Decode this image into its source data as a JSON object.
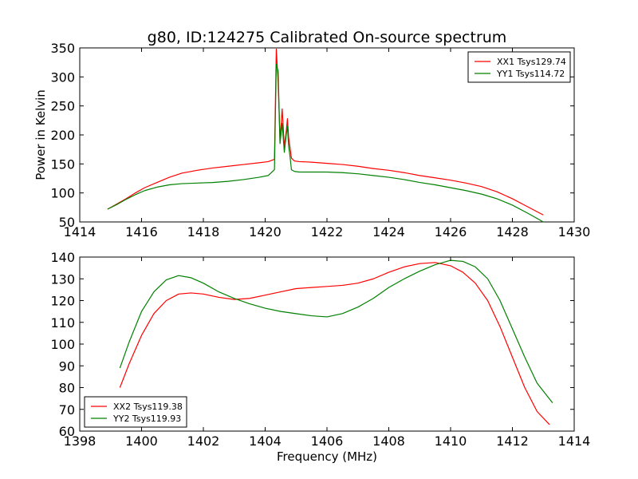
{
  "figure": {
    "title": "g80, ID:124275 Calibrated On-source spectrum",
    "xlabel": "Frequency (MHz)"
  },
  "chart_data": [
    {
      "type": "line",
      "ylabel": "Power in Kelvin",
      "xlim": [
        1414,
        1430
      ],
      "ylim": [
        50,
        350
      ],
      "xticks": [
        "1414",
        "1416",
        "1418",
        "1420",
        "1422",
        "1424",
        "1426",
        "1428",
        "1430"
      ],
      "yticks": [
        "50",
        "100",
        "150",
        "200",
        "250",
        "300",
        "350"
      ],
      "legend": "top-right",
      "series": [
        {
          "name": "XX1 Tsys129.74",
          "color": "#ff0000",
          "x": [
            1414.9,
            1415.2,
            1415.5,
            1415.8,
            1416.1,
            1416.5,
            1416.9,
            1417.3,
            1417.8,
            1418.3,
            1418.8,
            1419.3,
            1419.8,
            1420.1,
            1420.3,
            1420.36,
            1420.42,
            1420.48,
            1420.55,
            1420.62,
            1420.68,
            1420.72,
            1420.76,
            1420.8,
            1420.85,
            1420.95,
            1421.1,
            1421.5,
            1422.0,
            1422.5,
            1423.0,
            1423.5,
            1424.0,
            1424.5,
            1425.0,
            1425.5,
            1426.0,
            1426.5,
            1427.0,
            1427.5,
            1428.0,
            1428.5,
            1429.0
          ],
          "values": [
            72,
            81,
            90,
            100,
            109,
            118,
            127,
            134,
            139,
            143,
            146,
            149,
            152,
            154,
            158,
            348,
            290,
            190,
            245,
            180,
            205,
            228,
            195,
            180,
            160,
            155,
            154,
            153,
            151,
            149,
            146,
            142,
            139,
            135,
            130,
            126,
            122,
            117,
            111,
            102,
            90,
            76,
            62
          ]
        },
        {
          "name": "YY1 Tsys114.72",
          "color": "#008000",
          "x": [
            1414.9,
            1415.2,
            1415.5,
            1415.8,
            1416.1,
            1416.5,
            1416.9,
            1417.3,
            1417.8,
            1418.3,
            1418.8,
            1419.3,
            1419.8,
            1420.1,
            1420.3,
            1420.36,
            1420.42,
            1420.48,
            1420.55,
            1420.62,
            1420.68,
            1420.72,
            1420.76,
            1420.8,
            1420.85,
            1420.95,
            1421.1,
            1421.5,
            1422.0,
            1422.5,
            1423.0,
            1423.5,
            1424.0,
            1424.5,
            1425.0,
            1425.5,
            1426.0,
            1426.5,
            1427.0,
            1427.5,
            1428.0,
            1428.5,
            1429.0
          ],
          "values": [
            72,
            80,
            89,
            97,
            104,
            110,
            114,
            116,
            117,
            118,
            120,
            123,
            127,
            130,
            140,
            322,
            310,
            185,
            220,
            170,
            200,
            215,
            180,
            165,
            140,
            137,
            136,
            136,
            136,
            135,
            133,
            130,
            127,
            123,
            118,
            114,
            109,
            104,
            98,
            90,
            79,
            65,
            50
          ]
        }
      ]
    },
    {
      "type": "line",
      "ylabel": "",
      "xlim": [
        1398,
        1414
      ],
      "ylim": [
        60,
        140
      ],
      "xticks": [
        "1398",
        "1400",
        "1402",
        "1404",
        "1406",
        "1408",
        "1410",
        "1412",
        "1414"
      ],
      "yticks": [
        "60",
        "70",
        "80",
        "90",
        "100",
        "110",
        "120",
        "130",
        "140"
      ],
      "legend": "bottom-left",
      "series": [
        {
          "name": "XX2 Tsys119.38",
          "color": "#ff0000",
          "x": [
            1399.3,
            1399.6,
            1400.0,
            1400.4,
            1400.8,
            1401.2,
            1401.6,
            1402.0,
            1402.5,
            1403.0,
            1403.5,
            1404.0,
            1404.5,
            1405.0,
            1405.5,
            1406.0,
            1406.5,
            1407.0,
            1407.5,
            1408.0,
            1408.5,
            1409.0,
            1409.5,
            1410.0,
            1410.4,
            1410.8,
            1411.2,
            1411.6,
            1412.0,
            1412.4,
            1412.8,
            1413.2
          ],
          "values": [
            80,
            91,
            104,
            114,
            120,
            123,
            123.5,
            123,
            121.5,
            120.5,
            121,
            122.5,
            124,
            125.5,
            126,
            126.5,
            127,
            128,
            130,
            133,
            135.5,
            137,
            137.5,
            136,
            133,
            128,
            120,
            108,
            94,
            80,
            69,
            63
          ]
        },
        {
          "name": "YY2 Tsys119.93",
          "color": "#008000",
          "x": [
            1399.3,
            1399.6,
            1400.0,
            1400.4,
            1400.8,
            1401.2,
            1401.6,
            1402.0,
            1402.5,
            1403.0,
            1403.5,
            1404.0,
            1404.5,
            1405.0,
            1405.5,
            1406.0,
            1406.5,
            1407.0,
            1407.5,
            1408.0,
            1408.5,
            1409.0,
            1409.5,
            1410.0,
            1410.4,
            1410.8,
            1411.2,
            1411.6,
            1412.0,
            1412.4,
            1412.8,
            1413.3
          ],
          "values": [
            89,
            101,
            115,
            124,
            129.5,
            131.5,
            130.5,
            128,
            124,
            121,
            118.5,
            116.5,
            115,
            114,
            113,
            112.5,
            114,
            117,
            121,
            126,
            130,
            133.5,
            136.5,
            138.5,
            138,
            135.5,
            130,
            120,
            107,
            94,
            82,
            73
          ]
        }
      ]
    }
  ]
}
